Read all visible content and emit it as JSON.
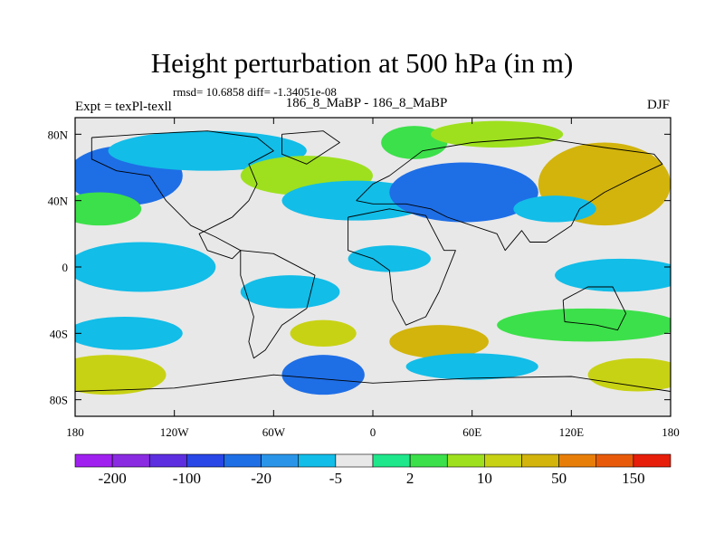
{
  "chart_data": {
    "type": "heatmap",
    "title": "Height perturbation at 500 hPa (in m)",
    "stats": "rmsd= 10.6858 diff= -1.34051e-08",
    "left_string": "Expt = texPl-texll",
    "center_string": "186_8_MaBP - 186_8_MaBP",
    "right_string": "DJF",
    "x_ticks": [
      "180",
      "120W",
      "60W",
      "0",
      "60E",
      "120E",
      "180"
    ],
    "x_tick_values": [
      -180,
      -120,
      -60,
      0,
      60,
      120,
      180
    ],
    "y_ticks": [
      "80N",
      "40N",
      "0",
      "40S",
      "80S"
    ],
    "y_tick_values": [
      80,
      40,
      0,
      -40,
      -80
    ],
    "xlim": [
      -180,
      180
    ],
    "ylim": [
      -90,
      90
    ],
    "colorbar_colors": [
      "#a020f0",
      "#8a2be2",
      "#5c2ee0",
      "#2946e6",
      "#1e6ee6",
      "#2a95e8",
      "#12bde8",
      "#e8e8e8",
      "#1ee68a",
      "#3ce04a",
      "#9ee01e",
      "#c8d214",
      "#d2b40c",
      "#e87e0a",
      "#e85a0a",
      "#e61e0a"
    ],
    "colorbar_labels": [
      "-200",
      "-100",
      "-20",
      "-5",
      "2",
      "10",
      "50",
      "150"
    ],
    "field_blobs": [
      {
        "lon": -150,
        "lat": 55,
        "rx": 35,
        "ry": 18,
        "v": -50
      },
      {
        "lon": -100,
        "lat": 70,
        "rx": 60,
        "ry": 12,
        "v": -8
      },
      {
        "lon": -165,
        "lat": 35,
        "rx": 25,
        "ry": 10,
        "v": 4
      },
      {
        "lon": -40,
        "lat": 55,
        "rx": 40,
        "ry": 12,
        "v": 6
      },
      {
        "lon": -10,
        "lat": 40,
        "rx": 45,
        "ry": 12,
        "v": -8
      },
      {
        "lon": 25,
        "lat": 75,
        "rx": 20,
        "ry": 10,
        "v": 4
      },
      {
        "lon": 55,
        "lat": 45,
        "rx": 45,
        "ry": 18,
        "v": -40
      },
      {
        "lon": 75,
        "lat": 80,
        "rx": 40,
        "ry": 8,
        "v": 5
      },
      {
        "lon": 140,
        "lat": 50,
        "rx": 40,
        "ry": 25,
        "v": 30
      },
      {
        "lon": 110,
        "lat": 35,
        "rx": 25,
        "ry": 8,
        "v": -6
      },
      {
        "lon": -140,
        "lat": 0,
        "rx": 45,
        "ry": 15,
        "v": -6
      },
      {
        "lon": -50,
        "lat": -15,
        "rx": 30,
        "ry": 10,
        "v": -6
      },
      {
        "lon": 10,
        "lat": 5,
        "rx": 25,
        "ry": 8,
        "v": -6
      },
      {
        "lon": 150,
        "lat": -5,
        "rx": 40,
        "ry": 10,
        "v": -6
      },
      {
        "lon": -150,
        "lat": -40,
        "rx": 35,
        "ry": 10,
        "v": -6
      },
      {
        "lon": -30,
        "lat": -40,
        "rx": 20,
        "ry": 8,
        "v": 15
      },
      {
        "lon": 40,
        "lat": -45,
        "rx": 30,
        "ry": 10,
        "v": 25
      },
      {
        "lon": 130,
        "lat": -35,
        "rx": 55,
        "ry": 10,
        "v": 4
      },
      {
        "lon": -160,
        "lat": -65,
        "rx": 35,
        "ry": 12,
        "v": 12
      },
      {
        "lon": -30,
        "lat": -65,
        "rx": 25,
        "ry": 12,
        "v": -50
      },
      {
        "lon": 60,
        "lat": -60,
        "rx": 40,
        "ry": 8,
        "v": -6
      },
      {
        "lon": 160,
        "lat": -65,
        "rx": 30,
        "ry": 10,
        "v": 10
      }
    ],
    "coastlines": [
      {
        "name": "north-america",
        "points": [
          [
            -170,
            78
          ],
          [
            -140,
            80
          ],
          [
            -100,
            82
          ],
          [
            -70,
            78
          ],
          [
            -60,
            70
          ],
          [
            -75,
            62
          ],
          [
            -70,
            50
          ],
          [
            -75,
            40
          ],
          [
            -85,
            30
          ],
          [
            -95,
            25
          ],
          [
            -105,
            20
          ],
          [
            -100,
            10
          ],
          [
            -85,
            5
          ],
          [
            -80,
            10
          ],
          [
            -95,
            18
          ],
          [
            -110,
            25
          ],
          [
            -125,
            40
          ],
          [
            -135,
            55
          ],
          [
            -155,
            58
          ],
          [
            -170,
            65
          ],
          [
            -170,
            78
          ]
        ]
      },
      {
        "name": "greenland",
        "points": [
          [
            -55,
            80
          ],
          [
            -30,
            82
          ],
          [
            -20,
            75
          ],
          [
            -40,
            62
          ],
          [
            -55,
            68
          ],
          [
            -55,
            80
          ]
        ]
      },
      {
        "name": "south-america",
        "points": [
          [
            -80,
            10
          ],
          [
            -60,
            8
          ],
          [
            -35,
            -5
          ],
          [
            -40,
            -25
          ],
          [
            -55,
            -35
          ],
          [
            -65,
            -50
          ],
          [
            -72,
            -55
          ],
          [
            -75,
            -45
          ],
          [
            -72,
            -30
          ],
          [
            -80,
            -5
          ],
          [
            -80,
            10
          ]
        ]
      },
      {
        "name": "eurasia",
        "points": [
          [
            -10,
            40
          ],
          [
            0,
            50
          ],
          [
            10,
            55
          ],
          [
            30,
            70
          ],
          [
            60,
            75
          ],
          [
            100,
            78
          ],
          [
            140,
            72
          ],
          [
            170,
            68
          ],
          [
            175,
            62
          ],
          [
            160,
            55
          ],
          [
            140,
            45
          ],
          [
            125,
            35
          ],
          [
            120,
            25
          ],
          [
            105,
            15
          ],
          [
            95,
            15
          ],
          [
            90,
            22
          ],
          [
            80,
            10
          ],
          [
            75,
            20
          ],
          [
            60,
            25
          ],
          [
            45,
            30
          ],
          [
            35,
            35
          ],
          [
            20,
            38
          ],
          [
            0,
            38
          ],
          [
            -10,
            40
          ]
        ]
      },
      {
        "name": "africa",
        "points": [
          [
            -15,
            30
          ],
          [
            10,
            35
          ],
          [
            32,
            31
          ],
          [
            43,
            10
          ],
          [
            50,
            10
          ],
          [
            40,
            -15
          ],
          [
            32,
            -30
          ],
          [
            20,
            -35
          ],
          [
            12,
            -20
          ],
          [
            10,
            -2
          ],
          [
            0,
            5
          ],
          [
            -15,
            10
          ],
          [
            -15,
            30
          ]
        ]
      },
      {
        "name": "australia",
        "points": [
          [
            115,
            -20
          ],
          [
            130,
            -12
          ],
          [
            145,
            -12
          ],
          [
            153,
            -28
          ],
          [
            148,
            -38
          ],
          [
            135,
            -35
          ],
          [
            116,
            -33
          ],
          [
            115,
            -20
          ]
        ]
      },
      {
        "name": "antarctica",
        "points": [
          [
            -180,
            -75
          ],
          [
            -120,
            -73
          ],
          [
            -60,
            -65
          ],
          [
            0,
            -70
          ],
          [
            60,
            -67
          ],
          [
            120,
            -66
          ],
          [
            180,
            -75
          ]
        ]
      }
    ]
  }
}
